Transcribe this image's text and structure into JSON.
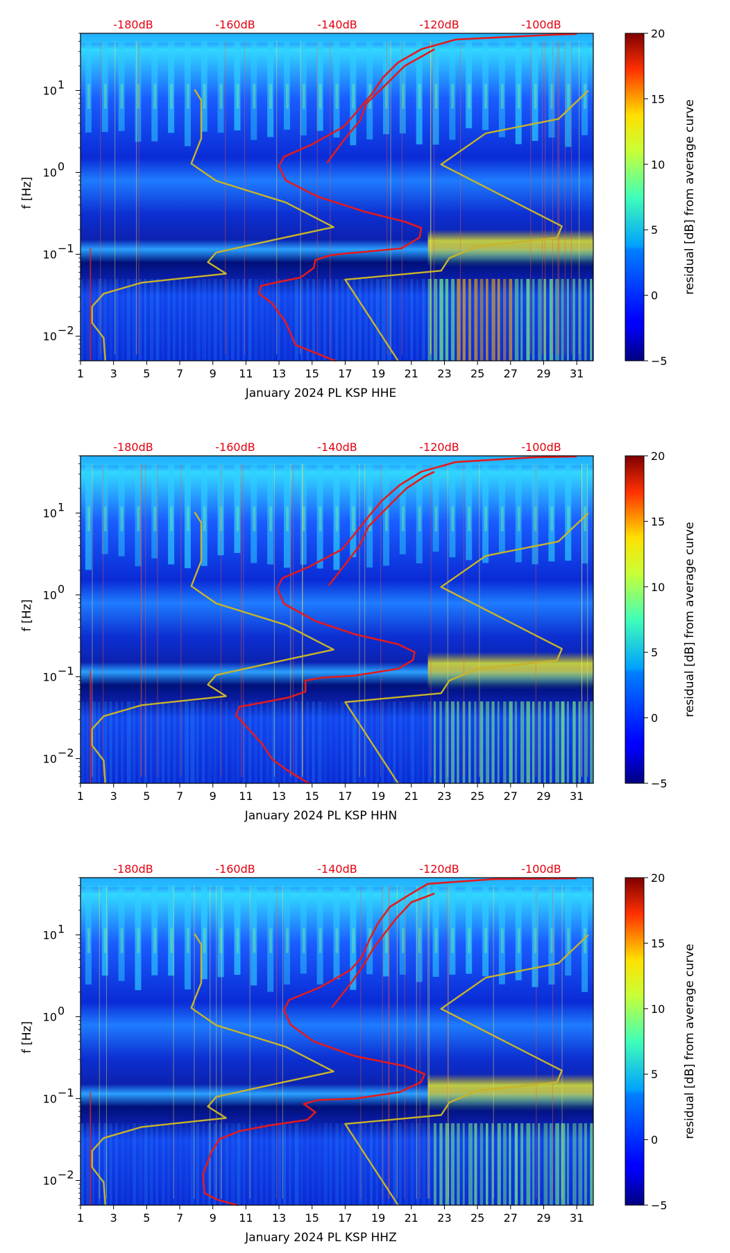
{
  "colorbar": {
    "label": "residual [dB] from average curve",
    "min": -5,
    "max": 20,
    "ticks": [
      "20",
      "15",
      "10",
      "5",
      "0",
      "−5"
    ]
  },
  "colors": {
    "nlnm_nhnm": "#c8b42a",
    "mean_psd": "#e41a1c",
    "db_labels": "#e4000f"
  },
  "chart_data": [
    {
      "type": "heatmap",
      "xlabel": "January 2024 PL KSP  HHE",
      "ylabel": "f [Hz]",
      "x_ticks": [
        "1",
        "3",
        "5",
        "7",
        "9",
        "11",
        "13",
        "15",
        "17",
        "19",
        "21",
        "23",
        "25",
        "27",
        "29",
        "31"
      ],
      "x_range": [
        1,
        32
      ],
      "y_range": [
        0.005,
        50
      ],
      "y_scale": "log",
      "y_ticks": [
        {
          "value": 10,
          "base": "10",
          "exp": "1"
        },
        {
          "value": 1,
          "base": "10",
          "exp": "0"
        },
        {
          "value": 0.1,
          "base": "10",
          "exp": "−1"
        },
        {
          "value": 0.01,
          "base": "10",
          "exp": "−2"
        }
      ],
      "db_scale_labels": [
        "-180dB",
        "-160dB",
        "-140dB",
        "-120dB",
        "-100dB"
      ],
      "series": [
        {
          "name": "NLNM",
          "color": "#c8b42a",
          "points": [
            [
              2.5,
              0.005
            ],
            [
              2.4,
              0.0095
            ],
            [
              1.7,
              0.0145
            ],
            [
              1.7,
              0.023
            ],
            [
              2.4,
              0.033
            ],
            [
              4.7,
              0.045
            ],
            [
              9.8,
              0.058
            ],
            [
              8.7,
              0.08
            ],
            [
              9.2,
              0.105
            ],
            [
              12.7,
              0.15
            ],
            [
              16.3,
              0.215
            ],
            [
              13.4,
              0.43
            ],
            [
              9.2,
              0.79
            ],
            [
              7.7,
              1.28
            ],
            [
              8.3,
              2.6
            ],
            [
              8.3,
              7.6
            ],
            [
              7.9,
              10.3
            ]
          ]
        },
        {
          "name": "NHNM",
          "color": "#c8b42a",
          "points": [
            [
              20.2,
              0.005
            ],
            [
              17.0,
              0.049
            ],
            [
              22.8,
              0.063
            ],
            [
              23.3,
              0.09
            ],
            [
              25.0,
              0.125
            ],
            [
              29.8,
              0.158
            ],
            [
              30.1,
              0.22
            ],
            [
              22.8,
              1.25
            ],
            [
              25.5,
              3.0
            ],
            [
              29.9,
              4.5
            ],
            [
              31.7,
              10.0
            ]
          ]
        },
        {
          "name": "Mean PSD",
          "color": "#e41a1c",
          "points": [
            [
              16.4,
              0.005
            ],
            [
              14.0,
              0.0078
            ],
            [
              13.4,
              0.0148
            ],
            [
              12.6,
              0.025
            ],
            [
              11.8,
              0.033
            ],
            [
              11.9,
              0.041
            ],
            [
              13.0,
              0.046
            ],
            [
              14.3,
              0.052
            ],
            [
              15.1,
              0.068
            ],
            [
              15.2,
              0.085
            ],
            [
              16.1,
              0.097
            ],
            [
              16.8,
              0.101
            ],
            [
              20.4,
              0.118
            ],
            [
              21.5,
              0.16
            ],
            [
              21.6,
              0.21
            ],
            [
              20.6,
              0.25
            ],
            [
              18.2,
              0.33
            ],
            [
              15.3,
              0.51
            ],
            [
              13.4,
              0.8
            ],
            [
              13.0,
              1.2
            ],
            [
              13.3,
              1.55
            ],
            [
              15.0,
              2.2
            ],
            [
              16.9,
              3.6
            ],
            [
              17.6,
              5.2
            ],
            [
              18.6,
              9.0
            ],
            [
              19.3,
              14.5
            ],
            [
              20.2,
              22.0
            ],
            [
              21.6,
              32.0
            ],
            [
              23.7,
              42.0
            ],
            [
              29.5,
              48.0
            ],
            [
              31.0,
              49.0
            ]
          ]
        },
        {
          "name": "Mean PSD (upper)",
          "color": "#e41a1c",
          "points": [
            [
              15.9,
              1.3
            ],
            [
              17.0,
              2.6
            ],
            [
              17.9,
              4.3
            ],
            [
              18.3,
              7.0
            ],
            [
              19.5,
              12.0
            ],
            [
              20.6,
              20.0
            ],
            [
              21.9,
              28.0
            ],
            [
              22.4,
              32.0
            ]
          ]
        }
      ]
    },
    {
      "type": "heatmap",
      "xlabel": "January 2024 PL KSP  HHN",
      "ylabel": "f [Hz]",
      "x_ticks": [
        "1",
        "3",
        "5",
        "7",
        "9",
        "11",
        "13",
        "15",
        "17",
        "19",
        "21",
        "23",
        "25",
        "27",
        "29",
        "31"
      ],
      "x_range": [
        1,
        32
      ],
      "y_range": [
        0.005,
        50
      ],
      "y_scale": "log",
      "y_ticks": [
        {
          "value": 10,
          "base": "10",
          "exp": "1"
        },
        {
          "value": 1,
          "base": "10",
          "exp": "0"
        },
        {
          "value": 0.1,
          "base": "10",
          "exp": "−1"
        },
        {
          "value": 0.01,
          "base": "10",
          "exp": "−2"
        }
      ],
      "db_scale_labels": [
        "-180dB",
        "-160dB",
        "-140dB",
        "-120dB",
        "-100dB"
      ],
      "series": [
        {
          "name": "NLNM",
          "color": "#c8b42a",
          "points": [
            [
              2.5,
              0.005
            ],
            [
              2.4,
              0.0095
            ],
            [
              1.7,
              0.0145
            ],
            [
              1.7,
              0.023
            ],
            [
              2.4,
              0.033
            ],
            [
              4.7,
              0.045
            ],
            [
              9.8,
              0.058
            ],
            [
              8.7,
              0.08
            ],
            [
              9.2,
              0.105
            ],
            [
              12.7,
              0.15
            ],
            [
              16.3,
              0.215
            ],
            [
              13.4,
              0.43
            ],
            [
              9.2,
              0.79
            ],
            [
              7.7,
              1.28
            ],
            [
              8.3,
              2.6
            ],
            [
              8.3,
              7.6
            ],
            [
              7.9,
              10.3
            ]
          ]
        },
        {
          "name": "NHNM",
          "color": "#c8b42a",
          "points": [
            [
              20.2,
              0.005
            ],
            [
              17.0,
              0.049
            ],
            [
              22.8,
              0.063
            ],
            [
              23.3,
              0.09
            ],
            [
              25.0,
              0.125
            ],
            [
              29.8,
              0.158
            ],
            [
              30.1,
              0.22
            ],
            [
              22.8,
              1.25
            ],
            [
              25.5,
              3.0
            ],
            [
              29.9,
              4.5
            ],
            [
              31.7,
              10.0
            ]
          ]
        },
        {
          "name": "Mean PSD",
          "color": "#e41a1c",
          "points": [
            [
              14.8,
              0.005
            ],
            [
              13.5,
              0.0072
            ],
            [
              12.6,
              0.0098
            ],
            [
              12.0,
              0.015
            ],
            [
              11.0,
              0.025
            ],
            [
              10.4,
              0.034
            ],
            [
              10.6,
              0.043
            ],
            [
              11.9,
              0.048
            ],
            [
              13.6,
              0.056
            ],
            [
              14.6,
              0.066
            ],
            [
              14.6,
              0.09
            ],
            [
              15.7,
              0.098
            ],
            [
              17.5,
              0.103
            ],
            [
              20.2,
              0.125
            ],
            [
              21.1,
              0.16
            ],
            [
              21.2,
              0.2
            ],
            [
              20.2,
              0.25
            ],
            [
              17.6,
              0.33
            ],
            [
              15.2,
              0.48
            ],
            [
              13.3,
              0.78
            ],
            [
              12.9,
              1.2
            ],
            [
              13.2,
              1.6
            ],
            [
              14.8,
              2.2
            ],
            [
              16.8,
              3.6
            ],
            [
              17.5,
              5.3
            ],
            [
              18.4,
              9.0
            ],
            [
              19.2,
              14.0
            ],
            [
              20.3,
              22.0
            ],
            [
              21.6,
              32.0
            ],
            [
              23.7,
              42.0
            ],
            [
              28.5,
              48.0
            ],
            [
              31.0,
              49.0
            ]
          ]
        },
        {
          "name": "Mean PSD (upper)",
          "color": "#e41a1c",
          "points": [
            [
              16.0,
              1.3
            ],
            [
              17.1,
              2.5
            ],
            [
              17.9,
              4.1
            ],
            [
              18.4,
              6.8
            ],
            [
              19.6,
              12.0
            ],
            [
              20.7,
              20.0
            ],
            [
              21.8,
              28.0
            ],
            [
              22.4,
              32.0
            ]
          ]
        }
      ]
    },
    {
      "type": "heatmap",
      "xlabel": "January 2024 PL KSP  HHZ",
      "ylabel": "f [Hz]",
      "x_ticks": [
        "1",
        "3",
        "5",
        "7",
        "9",
        "11",
        "13",
        "15",
        "17",
        "19",
        "21",
        "23",
        "25",
        "27",
        "29",
        "31"
      ],
      "x_range": [
        1,
        32
      ],
      "y_range": [
        0.005,
        50
      ],
      "y_scale": "log",
      "y_ticks": [
        {
          "value": 10,
          "base": "10",
          "exp": "1"
        },
        {
          "value": 1,
          "base": "10",
          "exp": "0"
        },
        {
          "value": 0.1,
          "base": "10",
          "exp": "−1"
        },
        {
          "value": 0.01,
          "base": "10",
          "exp": "−2"
        }
      ],
      "db_scale_labels": [
        "-180dB",
        "-160dB",
        "-140dB",
        "-120dB",
        "-100dB"
      ],
      "series": [
        {
          "name": "NLNM",
          "color": "#c8b42a",
          "points": [
            [
              2.5,
              0.005
            ],
            [
              2.4,
              0.0095
            ],
            [
              1.7,
              0.0145
            ],
            [
              1.7,
              0.023
            ],
            [
              2.4,
              0.033
            ],
            [
              4.7,
              0.045
            ],
            [
              9.8,
              0.058
            ],
            [
              8.7,
              0.08
            ],
            [
              9.2,
              0.105
            ],
            [
              12.7,
              0.15
            ],
            [
              16.3,
              0.215
            ],
            [
              13.4,
              0.43
            ],
            [
              9.2,
              0.79
            ],
            [
              7.7,
              1.28
            ],
            [
              8.3,
              2.6
            ],
            [
              8.3,
              7.6
            ],
            [
              7.9,
              10.3
            ]
          ]
        },
        {
          "name": "NHNM",
          "color": "#c8b42a",
          "points": [
            [
              20.2,
              0.005
            ],
            [
              17.0,
              0.049
            ],
            [
              22.8,
              0.063
            ],
            [
              23.3,
              0.09
            ],
            [
              25.0,
              0.125
            ],
            [
              29.8,
              0.158
            ],
            [
              30.1,
              0.22
            ],
            [
              22.8,
              1.25
            ],
            [
              25.5,
              3.0
            ],
            [
              29.9,
              4.5
            ],
            [
              31.7,
              10.0
            ]
          ]
        },
        {
          "name": "Mean PSD",
          "color": "#e41a1c",
          "points": [
            [
              10.5,
              0.005
            ],
            [
              9.3,
              0.0058
            ],
            [
              8.5,
              0.007
            ],
            [
              8.4,
              0.0118
            ],
            [
              8.9,
              0.022
            ],
            [
              9.4,
              0.032
            ],
            [
              10.6,
              0.04
            ],
            [
              12.4,
              0.047
            ],
            [
              14.7,
              0.055
            ],
            [
              15.2,
              0.068
            ],
            [
              14.5,
              0.086
            ],
            [
              15.3,
              0.096
            ],
            [
              17.6,
              0.1
            ],
            [
              20.3,
              0.12
            ],
            [
              21.6,
              0.16
            ],
            [
              21.8,
              0.2
            ],
            [
              20.6,
              0.25
            ],
            [
              17.6,
              0.33
            ],
            [
              15.1,
              0.5
            ],
            [
              13.7,
              0.8
            ],
            [
              13.3,
              1.2
            ],
            [
              13.6,
              1.6
            ],
            [
              15.5,
              2.3
            ],
            [
              17.3,
              3.7
            ],
            [
              18.0,
              5.3
            ],
            [
              18.5,
              9.0
            ],
            [
              19.0,
              14.0
            ],
            [
              19.7,
              22.0
            ],
            [
              21.0,
              32.0
            ],
            [
              22.0,
              42.0
            ],
            [
              26.0,
              48.0
            ],
            [
              31.0,
              49.0
            ]
          ]
        },
        {
          "name": "Mean PSD (upper)",
          "color": "#e41a1c",
          "points": [
            [
              16.2,
              1.3
            ],
            [
              17.3,
              2.5
            ],
            [
              18.1,
              4.2
            ],
            [
              18.7,
              6.8
            ],
            [
              19.4,
              10.5
            ],
            [
              20.1,
              16.0
            ],
            [
              21.0,
              25.0
            ],
            [
              22.4,
              32.0
            ]
          ]
        }
      ]
    }
  ]
}
